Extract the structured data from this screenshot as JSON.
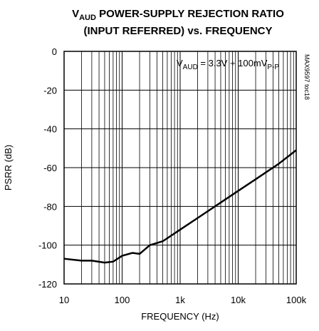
{
  "chart_data": {
    "type": "line",
    "title": {
      "line1": [
        {
          "text": "V"
        },
        {
          "text": "AUD",
          "sub": true
        },
        {
          "text": " POWER-SUPPLY REJECTION RATIO"
        }
      ],
      "line2": "(INPUT REFERRED) vs. FREQUENCY"
    },
    "xlabel": "FREQUENCY (Hz)",
    "ylabel": "PSRR (dB)",
    "annotation": [
      {
        "text": "V"
      },
      {
        "text": "AUD",
        "sub": true
      },
      {
        "text": " = 3.3V + 100mV"
      },
      {
        "text": "P-P",
        "sub": true
      }
    ],
    "side_note": "MAX9597 toc18",
    "x": [
      10,
      20,
      30,
      50,
      70,
      100,
      150,
      200,
      300,
      500,
      1000,
      2000,
      5000,
      10000,
      20000,
      50000,
      100000
    ],
    "values": [
      -107,
      -108,
      -108,
      -109,
      -108.5,
      -105.5,
      -104,
      -104.5,
      -100,
      -98,
      -92,
      -86,
      -78,
      -72,
      -66,
      -58,
      -51
    ],
    "color": "#000000",
    "xscale": "log",
    "xlim": [
      10,
      100000
    ],
    "xticks": [
      10,
      100,
      {
        "value": 1000,
        "label": "1k"
      },
      {
        "value": 10000,
        "label": "10k"
      },
      {
        "value": 100000,
        "label": "100k"
      }
    ],
    "ylim": [
      -120,
      0
    ],
    "yticks": [
      0,
      -20,
      -40,
      -60,
      -80,
      -100,
      -120
    ],
    "grid": true,
    "minor_grid": true
  }
}
